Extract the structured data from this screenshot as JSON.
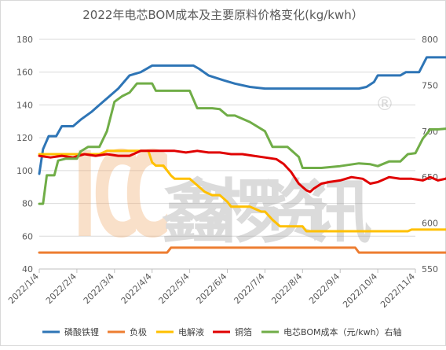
{
  "chart_data": {
    "type": "line",
    "title": "2022年电芯BOM成本及主要原料价格变化(kg/kwh）",
    "xlabel": "",
    "ylabel": "",
    "y2label": "",
    "categories": [
      "2022/1/4",
      "2022/2/4",
      "2022/3/4",
      "2022/4/4",
      "2022/5/4",
      "2022/6/4",
      "2022/7/4",
      "2022/8/4",
      "2022/9/4",
      "2022/10/4",
      "2022/11/4"
    ],
    "ylim": [
      40,
      180
    ],
    "yticks": [
      "40",
      "60",
      "80",
      "100",
      "120",
      "140",
      "160",
      "180"
    ],
    "y2lim": [
      550,
      800
    ],
    "y2ticks": [
      "550",
      "600",
      "650",
      "700",
      "750",
      "800"
    ],
    "grid": true,
    "legend_position": "bottom",
    "watermark": "ICC鑫椤资讯®",
    "series": [
      {
        "name": "磷酸铁锂",
        "color": "#2E75B6",
        "axis": "left",
        "points": [
          [
            0,
            98
          ],
          [
            0.1,
            113
          ],
          [
            0.25,
            121
          ],
          [
            0.45,
            121
          ],
          [
            0.6,
            127
          ],
          [
            0.9,
            127
          ],
          [
            1.1,
            131
          ],
          [
            1.4,
            136
          ],
          [
            1.6,
            140
          ],
          [
            1.8,
            144
          ],
          [
            2.1,
            150
          ],
          [
            2.4,
            158
          ],
          [
            2.7,
            160
          ],
          [
            3.0,
            164
          ],
          [
            3.5,
            164
          ],
          [
            4.1,
            164
          ],
          [
            4.25,
            162
          ],
          [
            4.5,
            158
          ],
          [
            4.9,
            155
          ],
          [
            5.2,
            153
          ],
          [
            5.6,
            151
          ],
          [
            6.0,
            150
          ],
          [
            6.6,
            150
          ],
          [
            7.2,
            150
          ],
          [
            7.6,
            150
          ],
          [
            8.0,
            150
          ],
          [
            8.5,
            150
          ],
          [
            8.7,
            151
          ],
          [
            8.9,
            154
          ],
          [
            9.0,
            158
          ],
          [
            9.3,
            158
          ],
          [
            9.6,
            158
          ],
          [
            9.75,
            160
          ],
          [
            10.1,
            160
          ],
          [
            10.3,
            169
          ],
          [
            10.5,
            169
          ],
          [
            10.9,
            169
          ]
        ]
      },
      {
        "name": "负极",
        "color": "#ED7D31",
        "axis": "left",
        "points": [
          [
            0,
            50
          ],
          [
            1,
            50
          ],
          [
            2,
            50
          ],
          [
            3,
            50
          ],
          [
            3.4,
            50
          ],
          [
            3.5,
            53
          ],
          [
            4,
            53
          ],
          [
            5,
            53
          ],
          [
            6,
            53
          ],
          [
            7,
            53
          ],
          [
            8,
            53
          ],
          [
            8.4,
            53
          ],
          [
            8.5,
            50
          ],
          [
            9,
            50
          ],
          [
            10,
            50
          ],
          [
            10.9,
            50
          ]
        ]
      },
      {
        "name": "电解液",
        "color": "#FFC000",
        "axis": "left",
        "points": [
          [
            0,
            110
          ],
          [
            1,
            110
          ],
          [
            1.6,
            110
          ],
          [
            1.8,
            112
          ],
          [
            2.1,
            112
          ],
          [
            2.5,
            112
          ],
          [
            2.9,
            112
          ],
          [
            3.0,
            105
          ],
          [
            3.1,
            103
          ],
          [
            3.3,
            103
          ],
          [
            3.5,
            97
          ],
          [
            3.6,
            95
          ],
          [
            4.0,
            95
          ],
          [
            4.2,
            91
          ],
          [
            4.4,
            87
          ],
          [
            4.6,
            85
          ],
          [
            4.8,
            85
          ],
          [
            5.0,
            81
          ],
          [
            5.1,
            78
          ],
          [
            5.6,
            78
          ],
          [
            5.9,
            75
          ],
          [
            6.0,
            75
          ],
          [
            6.2,
            70
          ],
          [
            6.4,
            66
          ],
          [
            7.0,
            66
          ],
          [
            7.1,
            63
          ],
          [
            8.5,
            63
          ],
          [
            9.5,
            63
          ],
          [
            9.8,
            63
          ],
          [
            9.9,
            64
          ],
          [
            10.5,
            64
          ],
          [
            10.9,
            64
          ]
        ]
      },
      {
        "name": "铜箔",
        "color": "#E00000",
        "axis": "left",
        "points": [
          [
            0,
            109
          ],
          [
            0.3,
            108
          ],
          [
            0.6,
            109
          ],
          [
            0.9,
            108
          ],
          [
            1.2,
            110
          ],
          [
            1.5,
            109
          ],
          [
            1.8,
            110
          ],
          [
            2.1,
            109
          ],
          [
            2.4,
            109
          ],
          [
            2.7,
            112
          ],
          [
            3.0,
            112
          ],
          [
            3.3,
            112
          ],
          [
            3.6,
            112
          ],
          [
            3.9,
            111
          ],
          [
            4.2,
            112
          ],
          [
            4.5,
            111
          ],
          [
            4.8,
            111
          ],
          [
            5.1,
            110
          ],
          [
            5.4,
            110
          ],
          [
            5.7,
            109
          ],
          [
            6.0,
            108
          ],
          [
            6.3,
            107
          ],
          [
            6.5,
            104
          ],
          [
            6.7,
            99
          ],
          [
            6.9,
            92
          ],
          [
            7.0,
            90
          ],
          [
            7.1,
            88
          ],
          [
            7.2,
            87
          ],
          [
            7.3,
            89
          ],
          [
            7.5,
            92
          ],
          [
            7.7,
            93
          ],
          [
            8.0,
            94
          ],
          [
            8.3,
            96
          ],
          [
            8.6,
            95
          ],
          [
            8.8,
            92
          ],
          [
            9.0,
            93
          ],
          [
            9.3,
            96
          ],
          [
            9.6,
            95
          ],
          [
            9.9,
            95
          ],
          [
            10.2,
            94
          ],
          [
            10.4,
            96
          ],
          [
            10.6,
            94
          ],
          [
            10.8,
            95
          ],
          [
            10.9,
            96
          ]
        ]
      },
      {
        "name": "电芯BOM成本（元/kwh）右轴",
        "color": "#70AD47",
        "axis": "right",
        "points": [
          [
            0,
            621
          ],
          [
            0.1,
            621
          ],
          [
            0.2,
            652
          ],
          [
            0.4,
            652
          ],
          [
            0.5,
            668
          ],
          [
            0.7,
            670
          ],
          [
            1.0,
            670
          ],
          [
            1.1,
            678
          ],
          [
            1.3,
            683
          ],
          [
            1.6,
            683
          ],
          [
            1.8,
            700
          ],
          [
            2.0,
            732
          ],
          [
            2.2,
            738
          ],
          [
            2.4,
            742
          ],
          [
            2.6,
            752
          ],
          [
            2.8,
            752
          ],
          [
            3.0,
            752
          ],
          [
            3.1,
            744
          ],
          [
            3.5,
            744
          ],
          [
            4.0,
            744
          ],
          [
            4.2,
            725
          ],
          [
            4.6,
            725
          ],
          [
            4.8,
            724
          ],
          [
            5.0,
            717
          ],
          [
            5.2,
            717
          ],
          [
            5.6,
            710
          ],
          [
            6.0,
            700
          ],
          [
            6.2,
            683
          ],
          [
            6.6,
            683
          ],
          [
            6.9,
            672
          ],
          [
            7.0,
            660
          ],
          [
            7.5,
            660
          ],
          [
            8.0,
            662
          ],
          [
            8.5,
            665
          ],
          [
            8.8,
            664
          ],
          [
            9.0,
            662
          ],
          [
            9.3,
            667
          ],
          [
            9.6,
            667
          ],
          [
            9.8,
            675
          ],
          [
            10.0,
            676
          ],
          [
            10.2,
            692
          ],
          [
            10.4,
            702
          ],
          [
            10.6,
            702
          ],
          [
            10.9,
            703
          ]
        ]
      }
    ]
  }
}
